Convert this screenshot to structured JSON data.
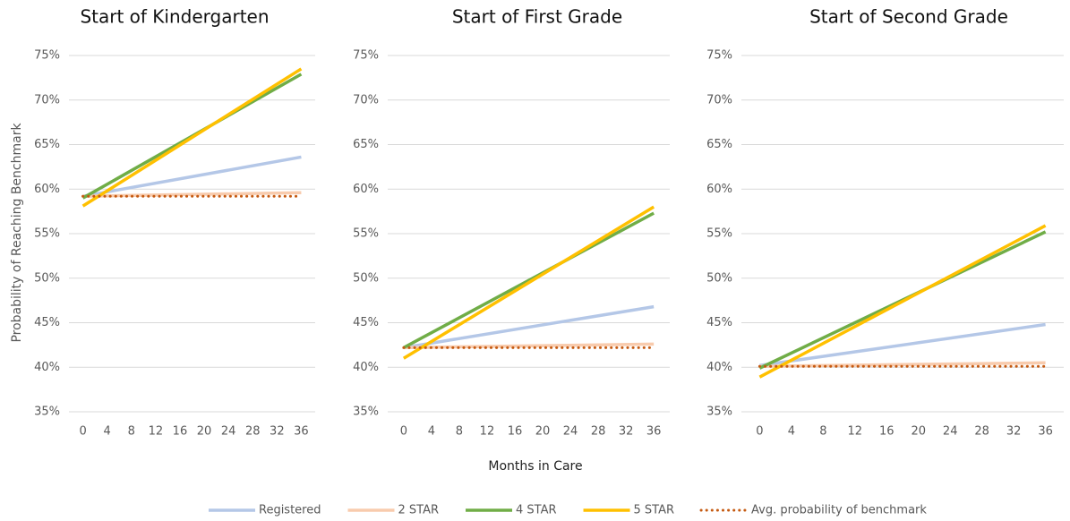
{
  "chart_data": [
    {
      "type": "line",
      "title": "Start of Kindergarten",
      "x": [
        0,
        36
      ],
      "xlim": [
        -2.3,
        38.3
      ],
      "xticks": [
        0,
        4,
        8,
        12,
        16,
        20,
        24,
        28,
        32,
        36
      ],
      "ylim": [
        35,
        75
      ],
      "yticks": [
        {
          "value": 35,
          "label": "35%"
        },
        {
          "value": 40,
          "label": "40%"
        },
        {
          "value": 45,
          "label": "45%"
        },
        {
          "value": 50,
          "label": "50%"
        },
        {
          "value": 55,
          "label": "55%"
        },
        {
          "value": 60,
          "label": "60%"
        },
        {
          "value": 65,
          "label": "65%"
        },
        {
          "value": 70,
          "label": "70%"
        },
        {
          "value": 75,
          "label": "75%"
        }
      ],
      "grid": true,
      "series": [
        {
          "name": "Registered",
          "color": "#b4c7e7",
          "values": [
            59.2,
            63.6
          ]
        },
        {
          "name": "2 STAR",
          "color": "#f8cbad",
          "values": [
            59.2,
            59.6
          ]
        },
        {
          "name": "4 STAR",
          "color": "#70ad47",
          "values": [
            59.0,
            72.9
          ]
        },
        {
          "name": "5 STAR",
          "color": "#ffc000",
          "values": [
            58.1,
            73.5
          ]
        },
        {
          "name": "Avg. probability of benchmark",
          "color": "#c55a11",
          "dotted": true,
          "values": [
            59.2,
            59.2
          ]
        }
      ]
    },
    {
      "type": "line",
      "title": "Start of First Grade",
      "x": [
        0,
        36
      ],
      "xlim": [
        -2.3,
        38.3
      ],
      "xticks": [
        0,
        4,
        8,
        12,
        16,
        20,
        24,
        28,
        32,
        36
      ],
      "ylim": [
        35,
        75
      ],
      "yticks": [
        {
          "value": 35,
          "label": "35%"
        },
        {
          "value": 40,
          "label": "40%"
        },
        {
          "value": 45,
          "label": "45%"
        },
        {
          "value": 50,
          "label": "50%"
        },
        {
          "value": 55,
          "label": "55%"
        },
        {
          "value": 60,
          "label": "60%"
        },
        {
          "value": 65,
          "label": "65%"
        },
        {
          "value": 70,
          "label": "70%"
        },
        {
          "value": 75,
          "label": "75%"
        }
      ],
      "grid": true,
      "series": [
        {
          "name": "Registered",
          "color": "#b4c7e7",
          "values": [
            42.2,
            46.8
          ]
        },
        {
          "name": "2 STAR",
          "color": "#f8cbad",
          "values": [
            42.2,
            42.6
          ]
        },
        {
          "name": "4 STAR",
          "color": "#70ad47",
          "values": [
            42.2,
            57.3
          ]
        },
        {
          "name": "5 STAR",
          "color": "#ffc000",
          "values": [
            41.0,
            58.0
          ]
        },
        {
          "name": "Avg. probability of benchmark",
          "color": "#c55a11",
          "dotted": true,
          "values": [
            42.2,
            42.2
          ]
        }
      ]
    },
    {
      "type": "line",
      "title": "Start of Second Grade",
      "x": [
        0,
        36
      ],
      "xlim": [
        -2.3,
        38.3
      ],
      "xticks": [
        0,
        4,
        8,
        12,
        16,
        20,
        24,
        28,
        32,
        36
      ],
      "ylim": [
        35,
        75
      ],
      "yticks": [
        {
          "value": 35,
          "label": "35%"
        },
        {
          "value": 40,
          "label": "40%"
        },
        {
          "value": 45,
          "label": "45%"
        },
        {
          "value": 50,
          "label": "50%"
        },
        {
          "value": 55,
          "label": "55%"
        },
        {
          "value": 60,
          "label": "60%"
        },
        {
          "value": 65,
          "label": "65%"
        },
        {
          "value": 70,
          "label": "70%"
        },
        {
          "value": 75,
          "label": "75%"
        }
      ],
      "grid": true,
      "series": [
        {
          "name": "Registered",
          "color": "#b4c7e7",
          "values": [
            40.2,
            44.8
          ]
        },
        {
          "name": "2 STAR",
          "color": "#f8cbad",
          "values": [
            40.1,
            40.5
          ]
        },
        {
          "name": "4 STAR",
          "color": "#70ad47",
          "values": [
            39.9,
            55.2
          ]
        },
        {
          "name": "5 STAR",
          "color": "#ffc000",
          "values": [
            38.9,
            55.9
          ]
        },
        {
          "name": "Avg. probability of benchmark",
          "color": "#c55a11",
          "dotted": true,
          "values": [
            40.1,
            40.1
          ]
        }
      ]
    }
  ],
  "xlabel": "Months in Care",
  "ylabel": "Probability of Reaching Benchmark"
}
